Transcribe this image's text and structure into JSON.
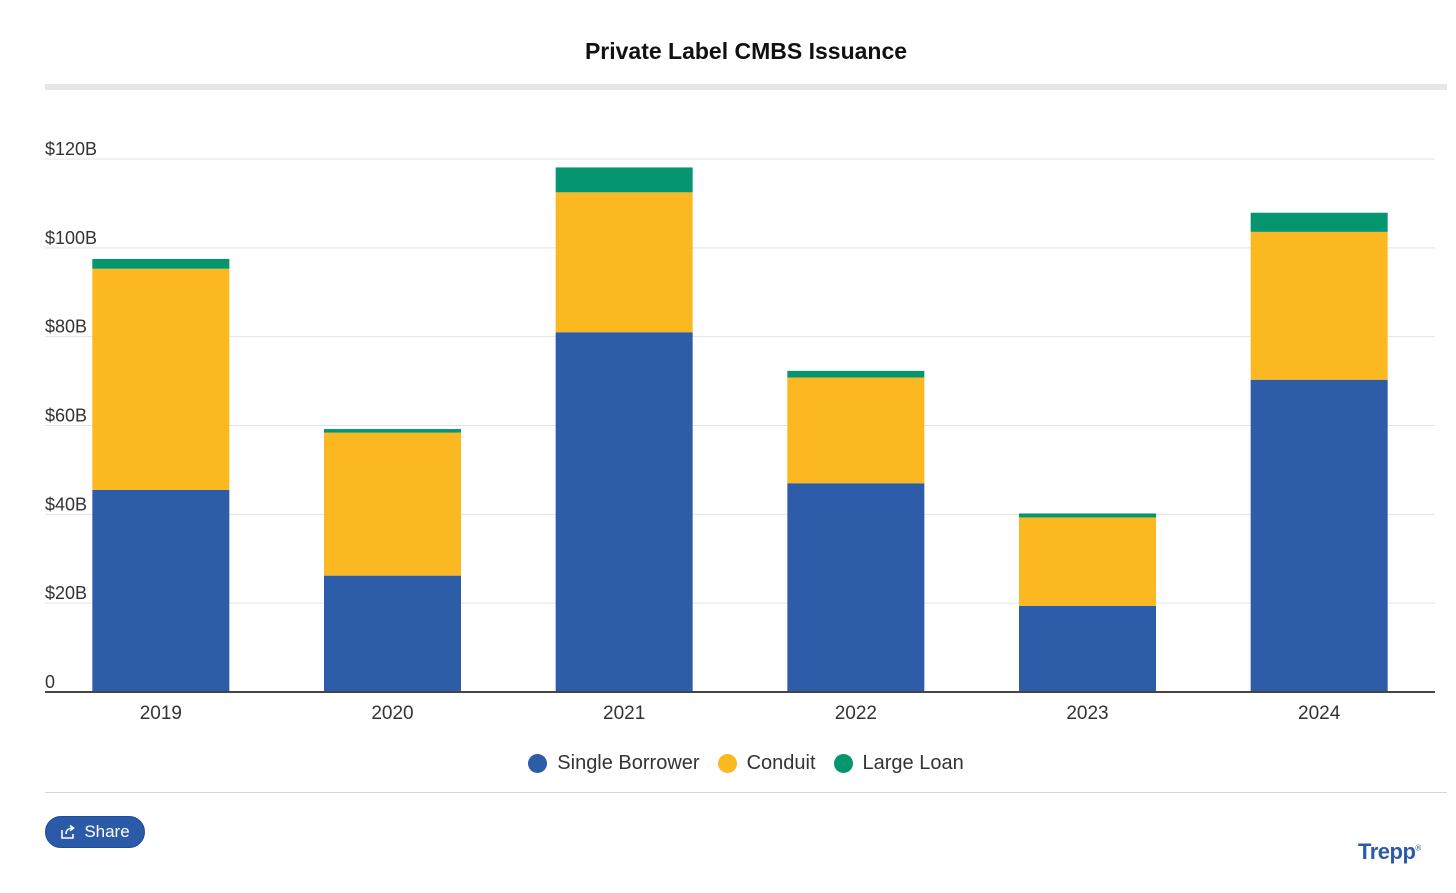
{
  "title": "Private Label CMBS Issuance",
  "chart_data": {
    "type": "bar",
    "stacked": true,
    "categories": [
      "2019",
      "2020",
      "2021",
      "2022",
      "2023",
      "2024"
    ],
    "series": [
      {
        "name": "Single Borrower",
        "color": "#2d5ca8",
        "values": [
          45.5,
          26.2,
          81.0,
          47.0,
          19.4,
          70.3
        ]
      },
      {
        "name": "Conduit",
        "color": "#fbb820",
        "values": [
          49.8,
          32.2,
          31.5,
          23.8,
          19.9,
          33.3
        ]
      },
      {
        "name": "Large Loan",
        "color": "#059670",
        "values": [
          2.2,
          0.8,
          5.6,
          1.5,
          0.9,
          4.3
        ]
      }
    ],
    "ylim": [
      0,
      120
    ],
    "yticks": [
      {
        "value": 0,
        "label": "0"
      },
      {
        "value": 20,
        "label": "$20B"
      },
      {
        "value": 40,
        "label": "$40B"
      },
      {
        "value": 60,
        "label": "$60B"
      },
      {
        "value": 80,
        "label": "$80B"
      },
      {
        "value": 100,
        "label": "$100B"
      },
      {
        "value": 120,
        "label": "$120B"
      }
    ],
    "grid": true,
    "legend_position": "bottom-center"
  },
  "share": {
    "label": "Share",
    "icon": "share-icon"
  },
  "logo": {
    "text": "Trepp",
    "mark": "®"
  }
}
